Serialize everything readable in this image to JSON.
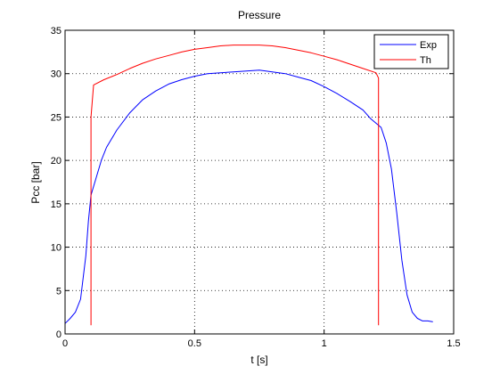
{
  "chart_data": {
    "type": "line",
    "title": "Pressure",
    "xlabel": "t [s]",
    "ylabel": "Pcc [bar]",
    "xlim": [
      0,
      1.5
    ],
    "ylim": [
      0,
      35
    ],
    "xticks": [
      0,
      0.5,
      1,
      1.5
    ],
    "xtick_labels": [
      "0",
      "0.5",
      "1",
      "1.5"
    ],
    "yticks": [
      0,
      5,
      10,
      15,
      20,
      25,
      30,
      35
    ],
    "ytick_labels": [
      "0",
      "5",
      "10",
      "15",
      "20",
      "25",
      "30",
      "35"
    ],
    "grid": true,
    "legend_position": "top-right",
    "series": [
      {
        "name": "Exp",
        "color": "#0000ff",
        "x": [
          0.0,
          0.02,
          0.04,
          0.06,
          0.08,
          0.09,
          0.1,
          0.12,
          0.14,
          0.16,
          0.18,
          0.2,
          0.25,
          0.3,
          0.35,
          0.4,
          0.45,
          0.5,
          0.55,
          0.6,
          0.65,
          0.7,
          0.75,
          0.8,
          0.85,
          0.9,
          0.95,
          1.0,
          1.05,
          1.1,
          1.15,
          1.18,
          1.2,
          1.22,
          1.24,
          1.26,
          1.28,
          1.3,
          1.32,
          1.34,
          1.36,
          1.38,
          1.4,
          1.42
        ],
        "y": [
          1.2,
          1.8,
          2.5,
          4.0,
          9.0,
          13.0,
          16.0,
          18.0,
          20.0,
          21.5,
          22.5,
          23.5,
          25.5,
          27.0,
          28.0,
          28.8,
          29.3,
          29.7,
          30.0,
          30.1,
          30.2,
          30.3,
          30.4,
          30.2,
          30.0,
          29.6,
          29.2,
          28.5,
          27.7,
          26.8,
          25.8,
          24.8,
          24.3,
          23.8,
          22.0,
          19.0,
          14.0,
          8.5,
          4.5,
          2.5,
          1.8,
          1.5,
          1.5,
          1.4
        ]
      },
      {
        "name": "Th",
        "color": "#ff0000",
        "x": [
          0.1,
          0.1,
          0.11,
          0.15,
          0.2,
          0.25,
          0.3,
          0.35,
          0.4,
          0.45,
          0.5,
          0.55,
          0.6,
          0.65,
          0.7,
          0.75,
          0.8,
          0.85,
          0.9,
          0.95,
          1.0,
          1.05,
          1.1,
          1.15,
          1.2,
          1.21,
          1.21
        ],
        "y": [
          1.0,
          25.0,
          28.7,
          29.3,
          29.9,
          30.6,
          31.2,
          31.7,
          32.1,
          32.5,
          32.8,
          33.0,
          33.2,
          33.3,
          33.3,
          33.3,
          33.2,
          33.0,
          32.7,
          32.4,
          32.0,
          31.6,
          31.1,
          30.6,
          30.1,
          29.5,
          1.0
        ]
      }
    ]
  }
}
